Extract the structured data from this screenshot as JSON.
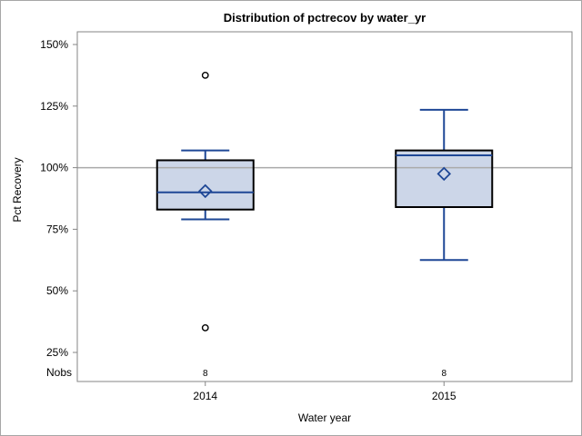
{
  "figure": {
    "nobs_label": "Nobs"
  },
  "chart_data": {
    "type": "boxplot",
    "title": "Distribution of pctrecov by water_yr",
    "xlabel": "Water year",
    "ylabel": "Pct Recovery",
    "categories": [
      "2014",
      "2015"
    ],
    "y_ticks": [
      {
        "value": 150,
        "label": "150%"
      },
      {
        "value": 125,
        "label": "125%"
      },
      {
        "value": 100,
        "label": "100%"
      },
      {
        "value": 75,
        "label": "75%"
      },
      {
        "value": 50,
        "label": "50%"
      },
      {
        "value": 25,
        "label": "25%"
      }
    ],
    "ylim": [
      13,
      155
    ],
    "reference_line": 100,
    "grid": false,
    "legend": false,
    "series": [
      {
        "category": "2014",
        "nobs": "8",
        "whisker_low": 79,
        "q1": 83,
        "median": 90,
        "mean": 90.5,
        "q3": 103,
        "whisker_high": 107,
        "outliers": [
          137.5,
          35
        ]
      },
      {
        "category": "2015",
        "nobs": "8",
        "whisker_low": 62.5,
        "q1": 84,
        "median": 105,
        "mean": 97.5,
        "q3": 107,
        "whisker_high": 123.5,
        "outliers": []
      }
    ]
  },
  "colors": {
    "box_fill": "#ccd6e8",
    "box_border": "#000000",
    "box_lines": "#1e4796",
    "mean_marker": "#1e4796",
    "outlier": "#000000",
    "reference_line": "#aaaaaa",
    "frame": "#868686",
    "text": "#000000",
    "figure_border": "#a6a6a6"
  }
}
